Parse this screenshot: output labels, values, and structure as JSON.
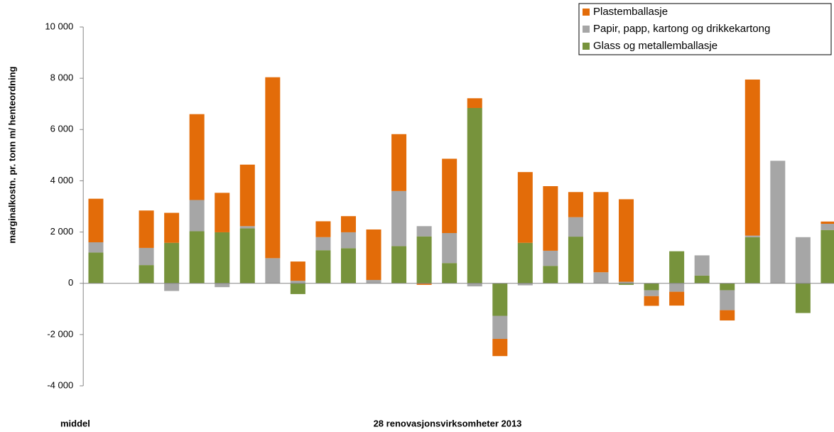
{
  "chart_data": {
    "type": "bar",
    "stacked": true,
    "y_label": "marginalkostn. pr. tonn m/ henteordning",
    "x_label": "28 renovasjonsvirksomheter 2013",
    "categories": [
      "middel",
      null,
      null,
      null,
      null,
      null,
      null,
      null,
      null,
      null,
      null,
      null,
      null,
      null,
      null,
      null,
      null,
      null,
      null,
      null,
      null,
      null,
      null,
      null,
      null,
      null,
      null,
      null,
      null,
      null
    ],
    "series": [
      {
        "name": "Glass og metallemballasje",
        "color": "#77933c",
        "values": [
          1200,
          null,
          710,
          1580,
          2030,
          1990,
          2140,
          0,
          -420,
          1290,
          1370,
          0,
          1450,
          1830,
          790,
          6840,
          -1270,
          1580,
          680,
          1820,
          0,
          -60,
          -270,
          1250,
          300,
          -270,
          1800,
          0,
          -1160,
          2080
        ]
      },
      {
        "name": "Papir, papp, kartong og drikkekartong",
        "color": "#a6a6a6",
        "values": [
          400,
          null,
          670,
          -300,
          1220,
          -150,
          90,
          980,
          100,
          510,
          620,
          130,
          2150,
          400,
          1170,
          -120,
          -900,
          -80,
          590,
          760,
          430,
          60,
          -230,
          -330,
          790,
          -780,
          60,
          4780,
          1800,
          240
        ]
      },
      {
        "name": "Plastemballasje",
        "color": "#e36c09",
        "values": [
          1700,
          null,
          1460,
          1170,
          3350,
          1540,
          2400,
          7060,
          750,
          620,
          630,
          1970,
          2220,
          -60,
          2900,
          380,
          -670,
          2760,
          2520,
          980,
          3130,
          3220,
          -380,
          -540,
          0,
          -400,
          6090,
          0,
          0,
          90
        ]
      }
    ],
    "ylim": [
      -4000,
      10000
    ],
    "yticks": [
      {
        "value": -4000,
        "label": "-4 000"
      },
      {
        "value": -2000,
        "label": "-2 000"
      },
      0,
      {
        "value": 2000,
        "label": "2 000"
      },
      {
        "value": 4000,
        "label": "4 000"
      },
      {
        "value": 6000,
        "label": "6 000"
      },
      {
        "value": 8000,
        "label": "8 000"
      },
      {
        "value": 10000,
        "label": "10 000"
      }
    ],
    "grid": false,
    "legend": "top-right"
  }
}
